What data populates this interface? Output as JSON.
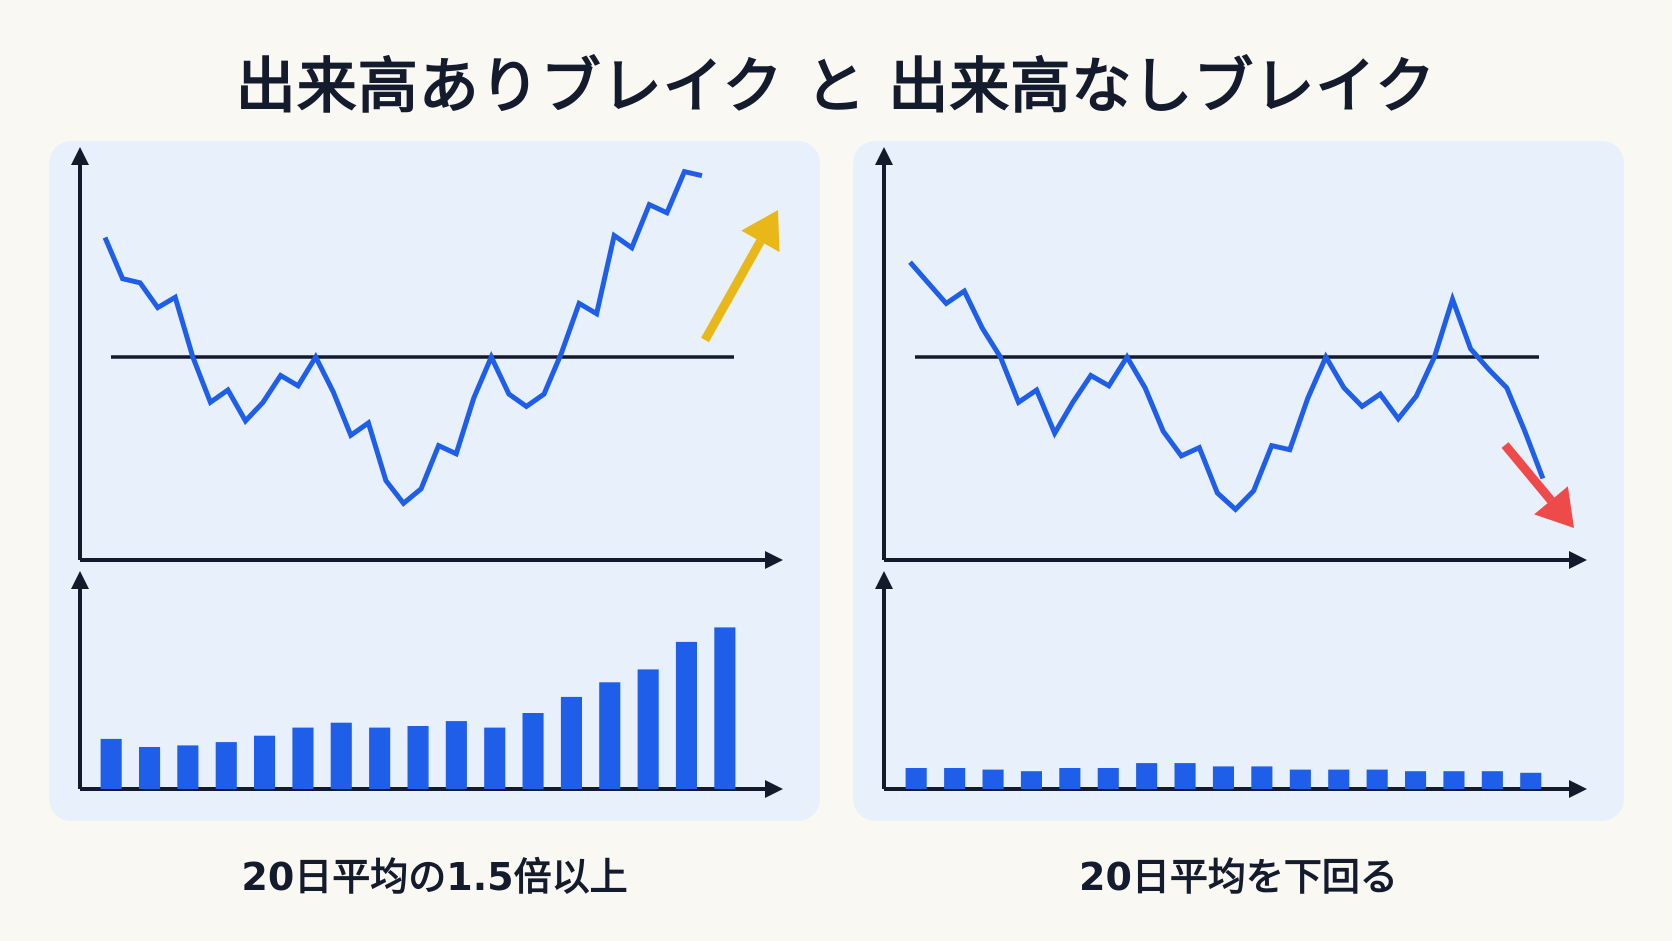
{
  "title": "出来高ありブレイク と 出来高なしブレイク",
  "colors": {
    "price_line": "#1f5ee8",
    "volume_bar": "#1f5ee8",
    "axis": "#121a2b",
    "resistance": "#121a2b",
    "up_arrow": "#e8b818",
    "down_arrow": "#ee4a4a",
    "panel_bg": "#e8f1fb",
    "page_bg": "#faf8f3"
  },
  "chart_data": [
    {
      "type": "line",
      "panel": "left",
      "caption": "20日平均の1.5倍以上",
      "resistance": 100,
      "ylim": [
        0,
        200
      ],
      "price": {
        "x": [
          0,
          1,
          2,
          3,
          4,
          5,
          6,
          7,
          8,
          9,
          10,
          11,
          12,
          13,
          14,
          15,
          16,
          17,
          18,
          19,
          20,
          21,
          22,
          23,
          24,
          25,
          26,
          27,
          28,
          29,
          30,
          31,
          32,
          33,
          34
        ],
        "y": [
          158,
          138,
          136,
          124,
          129,
          100,
          78,
          84,
          69,
          78,
          91,
          86,
          100,
          83,
          62,
          68,
          40,
          29,
          36,
          57,
          53,
          80,
          100,
          82,
          76,
          82,
          102,
          126,
          121,
          159,
          153,
          174,
          170,
          190,
          188
        ]
      },
      "trend_arrow": {
        "direction": "up"
      },
      "volume": {
        "type": "bar",
        "values": [
          31,
          26,
          27,
          29,
          33,
          38,
          41,
          38,
          39,
          42,
          38,
          47,
          57,
          66,
          74,
          91,
          100
        ],
        "ylim": [
          0,
          125
        ]
      }
    },
    {
      "type": "line",
      "panel": "right",
      "caption": "20日平均を下回る",
      "resistance": 100,
      "ylim": [
        0,
        200
      ],
      "price": {
        "x": [
          0,
          1,
          2,
          3,
          4,
          5,
          6,
          7,
          8,
          9,
          10,
          11,
          12,
          13,
          14,
          15,
          16,
          17,
          18,
          19,
          20,
          21,
          22,
          23,
          24,
          25,
          26,
          27,
          28,
          29,
          30,
          31,
          32,
          33,
          34,
          35
        ],
        "y": [
          146,
          136,
          126,
          132,
          114,
          100,
          78,
          84,
          63,
          78,
          91,
          86,
          100,
          85,
          64,
          52,
          56,
          34,
          26,
          35,
          57,
          55,
          80,
          100,
          85,
          76,
          82,
          70,
          81,
          100,
          128,
          104,
          94,
          85,
          64,
          41
        ],
        "xlim": [
          0,
          36
        ]
      },
      "trend_arrow": {
        "direction": "down"
      },
      "volume": {
        "type": "bar",
        "values": [
          13,
          13,
          12,
          11,
          13,
          13,
          16,
          16,
          14,
          14,
          12,
          12,
          12,
          11,
          11,
          11,
          10
        ],
        "ylim": [
          0,
          125
        ]
      }
    }
  ]
}
